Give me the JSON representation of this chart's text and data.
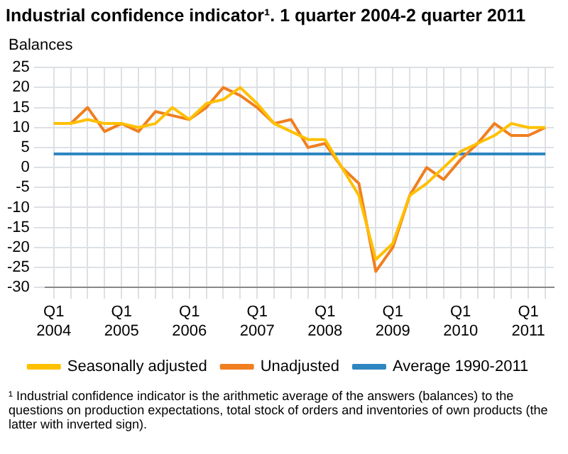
{
  "chart_data": {
    "type": "line",
    "title": "Industrial confidence indicator¹. 1 quarter 2004-2 quarter 2011",
    "ylabel": "Balances",
    "categories": [
      "Q1 2004",
      null,
      null,
      null,
      "Q1 2005",
      null,
      null,
      null,
      "Q1 2006",
      null,
      null,
      null,
      "Q1 2007",
      null,
      null,
      null,
      "Q1 2008",
      null,
      null,
      null,
      "Q1 2009",
      null,
      null,
      null,
      "Q1 2010",
      null,
      null,
      null,
      "Q1 2011",
      null
    ],
    "series": [
      {
        "name": "Seasonally adjusted",
        "color": "#ffc000",
        "values": [
          11,
          11,
          12,
          11,
          11,
          10,
          11,
          15,
          12,
          16,
          17,
          20,
          16,
          11,
          9,
          7,
          7,
          0,
          -7,
          -23,
          -19,
          -7,
          -4,
          0,
          4,
          6,
          8,
          11,
          10,
          10
        ]
      },
      {
        "name": "Unadjusted",
        "color": "#f07f20",
        "values": [
          11,
          11,
          15,
          9,
          11,
          9,
          14,
          13,
          12,
          15,
          20,
          18,
          15,
          11,
          12,
          5,
          6,
          0,
          -4,
          -26,
          -20,
          -7,
          0,
          -3,
          2,
          6,
          11,
          8,
          8,
          10
        ]
      },
      {
        "name": "Average 1990-2011",
        "color": "#2e86c1",
        "values": [
          3.4,
          3.4,
          3.4,
          3.4,
          3.4,
          3.4,
          3.4,
          3.4,
          3.4,
          3.4,
          3.4,
          3.4,
          3.4,
          3.4,
          3.4,
          3.4,
          3.4,
          3.4,
          3.4,
          3.4,
          3.4,
          3.4,
          3.4,
          3.4,
          3.4,
          3.4,
          3.4,
          3.4,
          3.4,
          3.4
        ]
      }
    ],
    "ylim": [
      -30,
      25
    ],
    "yticks": [
      -30,
      -25,
      -20,
      -15,
      -10,
      -5,
      0,
      5,
      10,
      15,
      20,
      25
    ],
    "grid": true,
    "legend": "bottom",
    "annotations": [
      "¹ Industrial confidence indicator is the arithmetic average of the answers (balances) to the questions on production expectations, total stock of orders and inventories of own products (the latter with inverted sign)."
    ]
  }
}
